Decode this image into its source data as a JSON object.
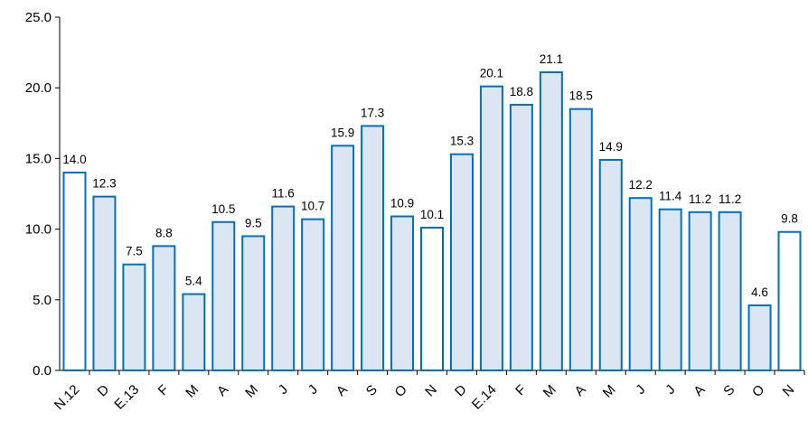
{
  "chart_data": {
    "type": "bar",
    "categories": [
      "N.12",
      "D",
      "E.13",
      "F",
      "M",
      "A",
      "M",
      "J",
      "J",
      "A",
      "S",
      "O",
      "N",
      "D",
      "E.14",
      "F",
      "M",
      "A",
      "M",
      "J",
      "J",
      "A",
      "S",
      "O",
      "N"
    ],
    "values": [
      14.0,
      12.3,
      7.5,
      8.8,
      5.4,
      10.5,
      9.5,
      11.6,
      10.7,
      15.9,
      17.3,
      10.9,
      10.1,
      15.3,
      20.1,
      18.8,
      21.1,
      18.5,
      14.9,
      12.2,
      11.4,
      11.2,
      11.2,
      4.6,
      9.8
    ],
    "value_labels": [
      "14.0",
      "12.3",
      "7.5",
      "8.8",
      "5.4",
      "10.5",
      "9.5",
      "11.6",
      "10.7",
      "15.9",
      "17.3",
      "10.9",
      "10.1",
      "15.3",
      "20.1",
      "18.8",
      "21.1",
      "18.5",
      "14.9",
      "12.2",
      "11.4",
      "11.2",
      "11.2",
      "4.6",
      "9.8"
    ],
    "highlighted": [
      true,
      false,
      false,
      false,
      false,
      false,
      false,
      false,
      false,
      false,
      false,
      false,
      true,
      false,
      false,
      false,
      false,
      false,
      false,
      false,
      false,
      false,
      false,
      false,
      true
    ],
    "ylim": [
      0,
      25
    ],
    "yticks": [
      "0.0",
      "5.0",
      "10.0",
      "15.0",
      "20.0",
      "25.0"
    ],
    "ytick_values": [
      0,
      5,
      10,
      15,
      20,
      25
    ],
    "title": "",
    "xlabel": "",
    "ylabel": "",
    "grid": false,
    "colors": {
      "bar_fill": "#dce6f2",
      "bar_fill_highlight": "#ffffff",
      "bar_stroke": "#0070c0",
      "axis": "#000000"
    }
  }
}
